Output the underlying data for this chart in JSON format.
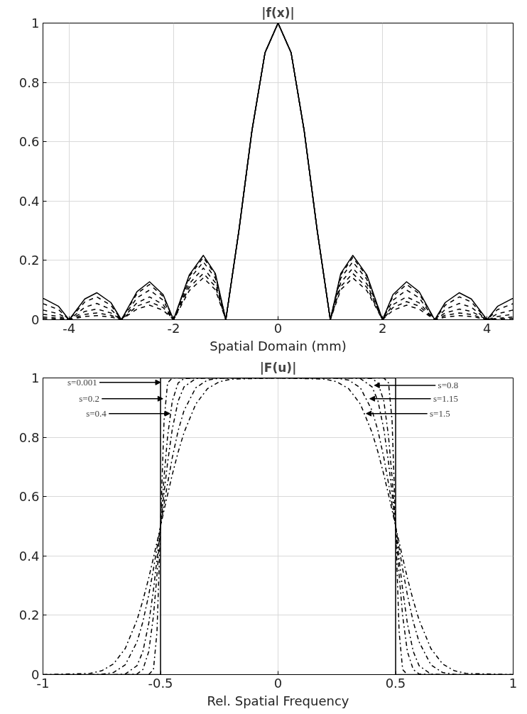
{
  "chart_data": [
    {
      "type": "line",
      "title": "|f(x)|",
      "xlabel": "Spatial Domain (mm)",
      "xlim": [
        -4.5,
        4.5
      ],
      "xticks": [
        -4,
        -2,
        0,
        2,
        4
      ],
      "ylim": [
        0,
        1
      ],
      "yticks": [
        0,
        0.2,
        0.4,
        0.6,
        0.8,
        1
      ],
      "grid": true,
      "x": [
        -4.5,
        -4.48,
        -4.2,
        -4,
        -3.7,
        -3.47,
        -3.2,
        -3,
        -2.7,
        -2.46,
        -2.2,
        -2,
        -1.7,
        -1.43,
        -1.2,
        -1,
        -0.75,
        -0.5,
        -0.25,
        0,
        0.25,
        0.5,
        0.75,
        1,
        1.2,
        1.43,
        1.7,
        2,
        2.2,
        2.46,
        2.7,
        3,
        3.2,
        3.47,
        3.7,
        4,
        4.2,
        4.48,
        4.5
      ],
      "series": [
        {
          "color": "#000000",
          "line_style": "solid",
          "values": [
            0.071,
            0.071,
            0.045,
            0,
            0.07,
            0.091,
            0.058,
            0,
            0.095,
            0.128,
            0.085,
            0,
            0.151,
            0.217,
            0.156,
            0,
            0.3,
            0.637,
            0.9,
            1,
            0.9,
            0.637,
            0.3,
            0,
            0.156,
            0.217,
            0.151,
            0,
            0.085,
            0.128,
            0.095,
            0,
            0.058,
            0.091,
            0.07,
            0,
            0.045,
            0.071,
            0.071
          ]
        },
        {
          "color": "#000000",
          "line_style": "dashed",
          "values": [
            0.053,
            0.053,
            0.034,
            0,
            0.06,
            0.077,
            0.049,
            0,
            0.088,
            0.119,
            0.079,
            0,
            0.146,
            0.21,
            0.151,
            0,
            0.3,
            0.637,
            0.9,
            1,
            0.9,
            0.637,
            0.3,
            0,
            0.151,
            0.21,
            0.146,
            0,
            0.079,
            0.119,
            0.088,
            0,
            0.049,
            0.077,
            0.06,
            0,
            0.034,
            0.053,
            0.053
          ]
        },
        {
          "color": "#000000",
          "line_style": "dashed",
          "values": [
            0.032,
            0.032,
            0.02,
            0,
            0.042,
            0.055,
            0.035,
            0,
            0.074,
            0.1,
            0.066,
            0,
            0.136,
            0.195,
            0.14,
            0,
            0.3,
            0.637,
            0.9,
            1,
            0.9,
            0.637,
            0.3,
            0,
            0.14,
            0.195,
            0.136,
            0,
            0.066,
            0.1,
            0.074,
            0,
            0.035,
            0.055,
            0.042,
            0,
            0.02,
            0.032,
            0.032
          ]
        },
        {
          "color": "#000000",
          "line_style": "dashed",
          "values": [
            0.018,
            0.018,
            0.011,
            0,
            0.028,
            0.036,
            0.023,
            0,
            0.057,
            0.077,
            0.051,
            0,
            0.121,
            0.174,
            0.125,
            0,
            0.3,
            0.637,
            0.9,
            1,
            0.9,
            0.637,
            0.3,
            0,
            0.125,
            0.174,
            0.121,
            0,
            0.051,
            0.077,
            0.057,
            0,
            0.023,
            0.036,
            0.028,
            0,
            0.011,
            0.018,
            0.018
          ]
        },
        {
          "color": "#000000",
          "line_style": "dashed",
          "values": [
            0.009,
            0.009,
            0.005,
            0,
            0.018,
            0.023,
            0.015,
            0,
            0.046,
            0.061,
            0.041,
            0,
            0.109,
            0.156,
            0.112,
            0,
            0.3,
            0.637,
            0.9,
            1,
            0.9,
            0.637,
            0.3,
            0,
            0.112,
            0.156,
            0.109,
            0,
            0.041,
            0.061,
            0.046,
            0,
            0.015,
            0.023,
            0.018,
            0,
            0.005,
            0.009,
            0.009
          ]
        },
        {
          "color": "#000000",
          "line_style": "dashed",
          "values": [
            0.004,
            0.004,
            0.003,
            0,
            0.011,
            0.014,
            0.009,
            0,
            0.036,
            0.049,
            0.032,
            0,
            0.098,
            0.141,
            0.101,
            0,
            0.3,
            0.637,
            0.9,
            1,
            0.9,
            0.637,
            0.3,
            0,
            0.101,
            0.141,
            0.098,
            0,
            0.032,
            0.049,
            0.036,
            0,
            0.009,
            0.014,
            0.011,
            0,
            0.003,
            0.004,
            0.004
          ]
        }
      ]
    },
    {
      "type": "line",
      "title": "|F(u)|",
      "xlabel": "Rel. Spatial Frequency",
      "xlim": [
        -1,
        1
      ],
      "xticks": [
        -1,
        -0.5,
        0,
        0.5,
        1
      ],
      "ylim": [
        0,
        1
      ],
      "yticks": [
        0,
        0.2,
        0.4,
        0.6,
        0.8,
        1
      ],
      "grid": true,
      "x": [
        -1,
        -0.8,
        -0.75,
        -0.7,
        -0.65,
        -0.6,
        -0.575,
        -0.55,
        -0.53,
        -0.515,
        -0.5,
        -0.485,
        -0.47,
        -0.45,
        -0.425,
        -0.4,
        -0.35,
        -0.3,
        -0.25,
        -0.2,
        0,
        0.2,
        0.25,
        0.3,
        0.35,
        0.4,
        0.425,
        0.45,
        0.47,
        0.485,
        0.5,
        0.515,
        0.53,
        0.55,
        0.575,
        0.6,
        0.65,
        0.7,
        0.75,
        0.8,
        1
      ],
      "series": [
        {
          "color": "#000000",
          "line_style": "solid",
          "x": [
            -1,
            -0.5,
            -0.5,
            0.5,
            0.5,
            1
          ],
          "values": [
            0,
            0,
            1,
            1,
            0,
            0
          ]
        },
        {
          "color": "#000000",
          "line_style": "dashdot",
          "x": [
            -0.55,
            -0.53,
            -0.515,
            -0.5,
            -0.485,
            -0.47,
            -0.45,
            -0.425,
            -0.4,
            -0.35,
            -0.3,
            -0.25,
            -0.2,
            0,
            0.2,
            0.25,
            0.3,
            0.35,
            0.4,
            0.425,
            0.45,
            0.47,
            0.485,
            0.5,
            0.515,
            0.53,
            0.55
          ],
          "values": [
            0,
            0.017,
            0.144,
            0.5,
            0.856,
            0.983,
            1,
            1,
            1,
            1,
            1,
            1,
            1,
            1,
            1,
            1,
            1,
            1,
            1,
            1,
            1,
            0.983,
            0.856,
            0.5,
            0.144,
            0.017,
            0
          ]
        },
        {
          "color": "#000000",
          "line_style": "dashdot",
          "x": [
            -0.65,
            -0.6,
            -0.575,
            -0.55,
            -0.53,
            -0.515,
            -0.5,
            -0.485,
            -0.47,
            -0.45,
            -0.425,
            -0.4,
            -0.35,
            -0.3,
            -0.25,
            -0.2,
            0,
            0.2,
            0.25,
            0.3,
            0.35,
            0.4,
            0.425,
            0.45,
            0.47,
            0.485,
            0.5,
            0.515,
            0.53,
            0.55,
            0.575,
            0.6,
            0.65
          ],
          "values": [
            0,
            0.002,
            0.017,
            0.078,
            0.198,
            0.336,
            0.5,
            0.664,
            0.802,
            0.922,
            0.983,
            0.998,
            1,
            1,
            1,
            1,
            1,
            1,
            1,
            1,
            1,
            0.998,
            0.983,
            0.922,
            0.802,
            0.664,
            0.5,
            0.336,
            0.198,
            0.078,
            0.017,
            0.002,
            0
          ]
        },
        {
          "color": "#000000",
          "line_style": "dashdot",
          "x": [
            -0.7,
            -0.65,
            -0.6,
            -0.575,
            -0.55,
            -0.53,
            -0.515,
            -0.5,
            -0.485,
            -0.47,
            -0.45,
            -0.425,
            -0.4,
            -0.35,
            -0.3,
            -0.25,
            -0.2,
            0,
            0.2,
            0.25,
            0.3,
            0.35,
            0.4,
            0.425,
            0.45,
            0.47,
            0.485,
            0.5,
            0.515,
            0.53,
            0.55,
            0.575,
            0.6,
            0.65,
            0.7
          ],
          "values": [
            0,
            0.002,
            0.03,
            0.078,
            0.173,
            0.286,
            0.389,
            0.5,
            0.611,
            0.714,
            0.827,
            0.922,
            0.97,
            0.998,
            1,
            1,
            1,
            1,
            1,
            1,
            1,
            0.998,
            0.97,
            0.922,
            0.827,
            0.714,
            0.611,
            0.5,
            0.389,
            0.286,
            0.173,
            0.078,
            0.03,
            0.002,
            0
          ]
        },
        {
          "color": "#000000",
          "line_style": "dashdot",
          "x": [
            -0.8,
            -0.75,
            -0.7,
            -0.65,
            -0.6,
            -0.575,
            -0.55,
            -0.53,
            -0.515,
            -0.5,
            -0.485,
            -0.47,
            -0.45,
            -0.425,
            -0.4,
            -0.35,
            -0.3,
            -0.25,
            -0.2,
            0,
            0.2,
            0.25,
            0.3,
            0.35,
            0.4,
            0.425,
            0.45,
            0.47,
            0.485,
            0.5,
            0.515,
            0.53,
            0.55,
            0.575,
            0.6,
            0.65,
            0.7,
            0.75,
            0.8
          ],
          "values": [
            0,
            0.001,
            0.007,
            0.033,
            0.11,
            0.178,
            0.269,
            0.356,
            0.427,
            0.5,
            0.573,
            0.644,
            0.731,
            0.822,
            0.89,
            0.967,
            0.993,
            0.999,
            1,
            1,
            1,
            0.999,
            0.993,
            0.967,
            0.89,
            0.822,
            0.731,
            0.644,
            0.573,
            0.5,
            0.427,
            0.356,
            0.269,
            0.178,
            0.11,
            0.033,
            0.007,
            0.001,
            0
          ]
        },
        {
          "color": "#000000",
          "line_style": "dashdot",
          "values": [
            0,
            0.004,
            0.013,
            0.036,
            0.088,
            0.184,
            0.25,
            0.326,
            0.394,
            0.446,
            0.5,
            0.554,
            0.606,
            0.674,
            0.75,
            0.816,
            0.912,
            0.964,
            0.987,
            0.996,
            1,
            0.996,
            0.987,
            0.964,
            0.912,
            0.816,
            0.75,
            0.674,
            0.606,
            0.554,
            0.5,
            0.446,
            0.394,
            0.326,
            0.25,
            0.184,
            0.088,
            0.036,
            0.013,
            0.004,
            0
          ]
        }
      ],
      "annotations": [
        {
          "text": "s=0.001",
          "x": -0.5,
          "y": 0.985
        },
        {
          "text": "s=0.2",
          "x": -0.49,
          "y": 0.93
        },
        {
          "text": "s=0.4",
          "x": -0.46,
          "y": 0.88
        },
        {
          "text": "s=0.8",
          "x": 0.41,
          "y": 0.975
        },
        {
          "text": "s=1.15",
          "x": 0.39,
          "y": 0.93
        },
        {
          "text": "s=1.5",
          "x": 0.375,
          "y": 0.88
        }
      ]
    }
  ]
}
